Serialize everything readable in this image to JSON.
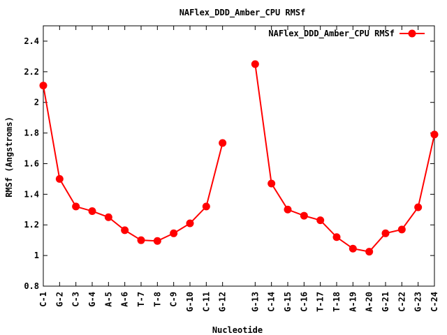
{
  "chart_data": {
    "type": "line",
    "title": "NAFlex_DDD_Amber_CPU RMSf",
    "xlabel": "Nucleotide",
    "ylabel": "RMSf (Angstroms)",
    "ylim": [
      0.8,
      2.5
    ],
    "yticks": [
      "0.8",
      "1",
      "1.2",
      "1.4",
      "1.6",
      "1.8",
      "2",
      "2.2",
      "2.4"
    ],
    "ytick_values": [
      0.8,
      1.0,
      1.2,
      1.4,
      1.6,
      1.8,
      2.0,
      2.2,
      2.4
    ],
    "legend_position": "top-right",
    "grid": false,
    "categories": [
      "C-1",
      "G-2",
      "C-3",
      "G-4",
      "A-5",
      "A-6",
      "T-7",
      "T-8",
      "C-9",
      "G-10",
      "C-11",
      "G-12",
      "G-13",
      "C-14",
      "G-15",
      "C-16",
      "T-17",
      "T-18",
      "A-19",
      "A-20",
      "G-21",
      "C-22",
      "G-23",
      "C-24"
    ],
    "x_positions": [
      1,
      2,
      3,
      4,
      5,
      6,
      7,
      8,
      9,
      10,
      11,
      12,
      14,
      15,
      16,
      17,
      18,
      19,
      20,
      21,
      22,
      23,
      24,
      25
    ],
    "xlim": [
      1,
      25
    ],
    "series": [
      {
        "name": "NAFlex_DDD_Amber_CPU RMSf",
        "color": "#ff0000",
        "segments": [
          [
            2.11,
            1.5,
            1.32,
            1.29,
            1.25,
            1.165,
            1.1,
            1.095,
            1.145,
            1.21,
            1.32,
            1.735
          ],
          [
            2.25,
            1.47,
            1.3,
            1.26,
            1.23,
            1.12,
            1.045,
            1.025,
            1.145,
            1.17,
            1.315,
            1.79
          ]
        ]
      }
    ]
  }
}
